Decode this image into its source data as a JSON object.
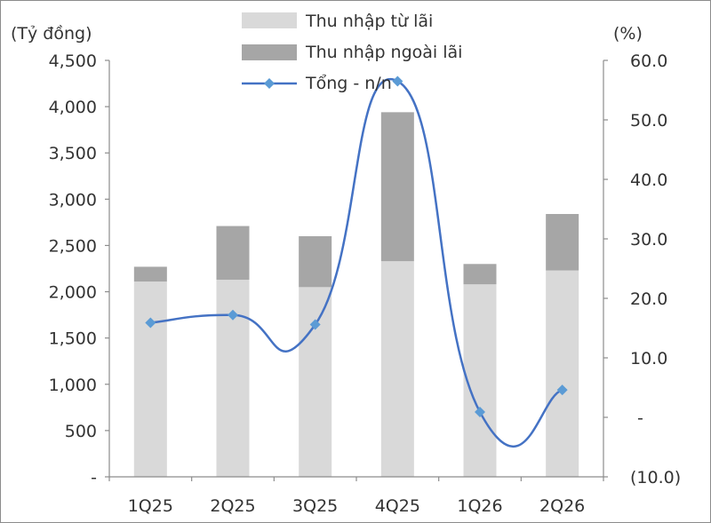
{
  "chart_data": {
    "type": "bar",
    "stacked": true,
    "categories": [
      "1Q25",
      "2Q25",
      "3Q25",
      "4Q25",
      "1Q26",
      "2Q26"
    ],
    "series": [
      {
        "name": "Thu nhập từ lãi",
        "axis": "left",
        "color": "#d9d9d9",
        "values": [
          2110,
          2130,
          2050,
          2330,
          2080,
          2230
        ]
      },
      {
        "name": "Thu nhập ngoài lãi",
        "axis": "left",
        "color": "#a6a6a6",
        "values": [
          160,
          580,
          550,
          1610,
          220,
          610
        ]
      },
      {
        "name": "Tổng - n/n",
        "axis": "right",
        "type": "line",
        "color": "#4472c4",
        "marker": "diamond",
        "values": [
          15.9,
          17.2,
          15.6,
          56.5,
          0.9,
          4.6
        ]
      }
    ],
    "left_axis": {
      "unit_label": "(Tỷ đồng)",
      "min": 0,
      "max": 4500,
      "step": 500,
      "tick_labels": [
        "-",
        "500",
        "1,000",
        "1,500",
        "2,000",
        "2,500",
        "3,000",
        "3,500",
        "4,000",
        "4,500"
      ]
    },
    "right_axis": {
      "unit_label": "(%)",
      "min": -10,
      "max": 60,
      "step": 10,
      "tick_labels": [
        "(10.0)",
        "-",
        "10.0",
        "20.0",
        "30.0",
        "40.0",
        "50.0",
        "60.0"
      ]
    },
    "legend_position": "top-center",
    "grid": false
  }
}
